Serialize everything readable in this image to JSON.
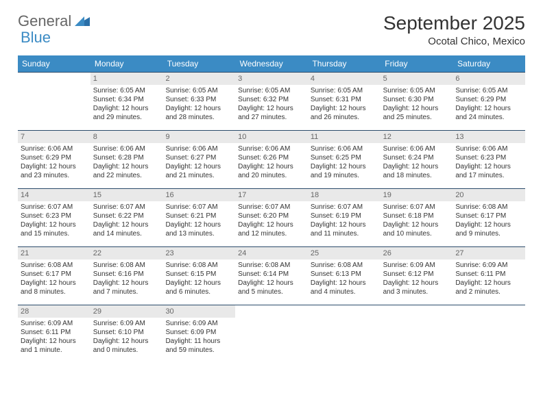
{
  "logo": {
    "text1": "General",
    "text2": "Blue"
  },
  "title": "September 2025",
  "location": "Ocotal Chico, Mexico",
  "weekdays": [
    "Sunday",
    "Monday",
    "Tuesday",
    "Wednesday",
    "Thursday",
    "Friday",
    "Saturday"
  ],
  "colors": {
    "header_bg": "#3b8bc4",
    "header_text": "#ffffff",
    "daynum_bg": "#e9e9e9",
    "border": "#2a4a6a",
    "text": "#333333"
  },
  "weeks": [
    [
      {
        "num": "",
        "sunrise": "",
        "sunset": "",
        "daylight": ""
      },
      {
        "num": "1",
        "sunrise": "Sunrise: 6:05 AM",
        "sunset": "Sunset: 6:34 PM",
        "daylight": "Daylight: 12 hours and 29 minutes."
      },
      {
        "num": "2",
        "sunrise": "Sunrise: 6:05 AM",
        "sunset": "Sunset: 6:33 PM",
        "daylight": "Daylight: 12 hours and 28 minutes."
      },
      {
        "num": "3",
        "sunrise": "Sunrise: 6:05 AM",
        "sunset": "Sunset: 6:32 PM",
        "daylight": "Daylight: 12 hours and 27 minutes."
      },
      {
        "num": "4",
        "sunrise": "Sunrise: 6:05 AM",
        "sunset": "Sunset: 6:31 PM",
        "daylight": "Daylight: 12 hours and 26 minutes."
      },
      {
        "num": "5",
        "sunrise": "Sunrise: 6:05 AM",
        "sunset": "Sunset: 6:30 PM",
        "daylight": "Daylight: 12 hours and 25 minutes."
      },
      {
        "num": "6",
        "sunrise": "Sunrise: 6:05 AM",
        "sunset": "Sunset: 6:29 PM",
        "daylight": "Daylight: 12 hours and 24 minutes."
      }
    ],
    [
      {
        "num": "7",
        "sunrise": "Sunrise: 6:06 AM",
        "sunset": "Sunset: 6:29 PM",
        "daylight": "Daylight: 12 hours and 23 minutes."
      },
      {
        "num": "8",
        "sunrise": "Sunrise: 6:06 AM",
        "sunset": "Sunset: 6:28 PM",
        "daylight": "Daylight: 12 hours and 22 minutes."
      },
      {
        "num": "9",
        "sunrise": "Sunrise: 6:06 AM",
        "sunset": "Sunset: 6:27 PM",
        "daylight": "Daylight: 12 hours and 21 minutes."
      },
      {
        "num": "10",
        "sunrise": "Sunrise: 6:06 AM",
        "sunset": "Sunset: 6:26 PM",
        "daylight": "Daylight: 12 hours and 20 minutes."
      },
      {
        "num": "11",
        "sunrise": "Sunrise: 6:06 AM",
        "sunset": "Sunset: 6:25 PM",
        "daylight": "Daylight: 12 hours and 19 minutes."
      },
      {
        "num": "12",
        "sunrise": "Sunrise: 6:06 AM",
        "sunset": "Sunset: 6:24 PM",
        "daylight": "Daylight: 12 hours and 18 minutes."
      },
      {
        "num": "13",
        "sunrise": "Sunrise: 6:06 AM",
        "sunset": "Sunset: 6:23 PM",
        "daylight": "Daylight: 12 hours and 17 minutes."
      }
    ],
    [
      {
        "num": "14",
        "sunrise": "Sunrise: 6:07 AM",
        "sunset": "Sunset: 6:23 PM",
        "daylight": "Daylight: 12 hours and 15 minutes."
      },
      {
        "num": "15",
        "sunrise": "Sunrise: 6:07 AM",
        "sunset": "Sunset: 6:22 PM",
        "daylight": "Daylight: 12 hours and 14 minutes."
      },
      {
        "num": "16",
        "sunrise": "Sunrise: 6:07 AM",
        "sunset": "Sunset: 6:21 PM",
        "daylight": "Daylight: 12 hours and 13 minutes."
      },
      {
        "num": "17",
        "sunrise": "Sunrise: 6:07 AM",
        "sunset": "Sunset: 6:20 PM",
        "daylight": "Daylight: 12 hours and 12 minutes."
      },
      {
        "num": "18",
        "sunrise": "Sunrise: 6:07 AM",
        "sunset": "Sunset: 6:19 PM",
        "daylight": "Daylight: 12 hours and 11 minutes."
      },
      {
        "num": "19",
        "sunrise": "Sunrise: 6:07 AM",
        "sunset": "Sunset: 6:18 PM",
        "daylight": "Daylight: 12 hours and 10 minutes."
      },
      {
        "num": "20",
        "sunrise": "Sunrise: 6:08 AM",
        "sunset": "Sunset: 6:17 PM",
        "daylight": "Daylight: 12 hours and 9 minutes."
      }
    ],
    [
      {
        "num": "21",
        "sunrise": "Sunrise: 6:08 AM",
        "sunset": "Sunset: 6:17 PM",
        "daylight": "Daylight: 12 hours and 8 minutes."
      },
      {
        "num": "22",
        "sunrise": "Sunrise: 6:08 AM",
        "sunset": "Sunset: 6:16 PM",
        "daylight": "Daylight: 12 hours and 7 minutes."
      },
      {
        "num": "23",
        "sunrise": "Sunrise: 6:08 AM",
        "sunset": "Sunset: 6:15 PM",
        "daylight": "Daylight: 12 hours and 6 minutes."
      },
      {
        "num": "24",
        "sunrise": "Sunrise: 6:08 AM",
        "sunset": "Sunset: 6:14 PM",
        "daylight": "Daylight: 12 hours and 5 minutes."
      },
      {
        "num": "25",
        "sunrise": "Sunrise: 6:08 AM",
        "sunset": "Sunset: 6:13 PM",
        "daylight": "Daylight: 12 hours and 4 minutes."
      },
      {
        "num": "26",
        "sunrise": "Sunrise: 6:09 AM",
        "sunset": "Sunset: 6:12 PM",
        "daylight": "Daylight: 12 hours and 3 minutes."
      },
      {
        "num": "27",
        "sunrise": "Sunrise: 6:09 AM",
        "sunset": "Sunset: 6:11 PM",
        "daylight": "Daylight: 12 hours and 2 minutes."
      }
    ],
    [
      {
        "num": "28",
        "sunrise": "Sunrise: 6:09 AM",
        "sunset": "Sunset: 6:11 PM",
        "daylight": "Daylight: 12 hours and 1 minute."
      },
      {
        "num": "29",
        "sunrise": "Sunrise: 6:09 AM",
        "sunset": "Sunset: 6:10 PM",
        "daylight": "Daylight: 12 hours and 0 minutes."
      },
      {
        "num": "30",
        "sunrise": "Sunrise: 6:09 AM",
        "sunset": "Sunset: 6:09 PM",
        "daylight": "Daylight: 11 hours and 59 minutes."
      },
      {
        "num": "",
        "sunrise": "",
        "sunset": "",
        "daylight": ""
      },
      {
        "num": "",
        "sunrise": "",
        "sunset": "",
        "daylight": ""
      },
      {
        "num": "",
        "sunrise": "",
        "sunset": "",
        "daylight": ""
      },
      {
        "num": "",
        "sunrise": "",
        "sunset": "",
        "daylight": ""
      }
    ]
  ]
}
